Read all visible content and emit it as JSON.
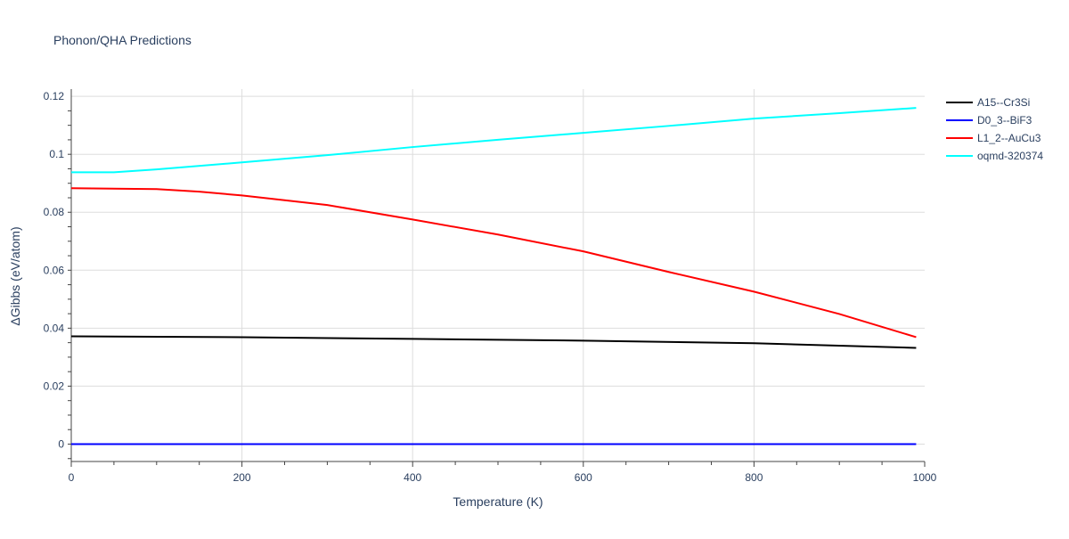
{
  "chart_data": {
    "type": "line",
    "title": "Phonon/QHA Predictions",
    "xlabel": "Temperature (K)",
    "ylabel": "ΔGibbs (eV/atom)",
    "xlim": [
      0,
      1000
    ],
    "ylim": [
      -0.006,
      0.1225
    ],
    "xticks": [
      0,
      200,
      400,
      600,
      800,
      1000
    ],
    "yticks": [
      0,
      0.02,
      0.04,
      0.06,
      0.08,
      0.1,
      0.12
    ],
    "ytick_labels": [
      "0",
      "0.02",
      "0.04",
      "0.06",
      "0.08",
      "0.1",
      "0.12"
    ],
    "grid": true,
    "legend_placement": "top-right",
    "series": [
      {
        "name": "A15--Cr3Si",
        "color": "#000000",
        "x": [
          0,
          200,
          400,
          600,
          800,
          990
        ],
        "y": [
          0.0372,
          0.0369,
          0.0363,
          0.0357,
          0.0348,
          0.0332
        ]
      },
      {
        "name": "D0_3--BiF3",
        "color": "#0000ff",
        "x": [
          0,
          990
        ],
        "y": [
          0,
          0
        ]
      },
      {
        "name": "L1_2--AuCu3",
        "color": "#ff0000",
        "x": [
          0,
          100,
          150,
          200,
          300,
          400,
          500,
          600,
          700,
          800,
          900,
          990
        ],
        "y": [
          0.0883,
          0.088,
          0.0871,
          0.0858,
          0.0825,
          0.0775,
          0.0723,
          0.0665,
          0.0594,
          0.0526,
          0.0449,
          0.0369
        ]
      },
      {
        "name": "oqmd-320374",
        "color": "#00ffff",
        "x": [
          0,
          50,
          100,
          200,
          300,
          400,
          500,
          600,
          700,
          800,
          900,
          990
        ],
        "y": [
          0.0938,
          0.0938,
          0.0948,
          0.0972,
          0.0997,
          0.1025,
          0.105,
          0.1074,
          0.1098,
          0.1123,
          0.1142,
          0.116
        ]
      }
    ]
  }
}
